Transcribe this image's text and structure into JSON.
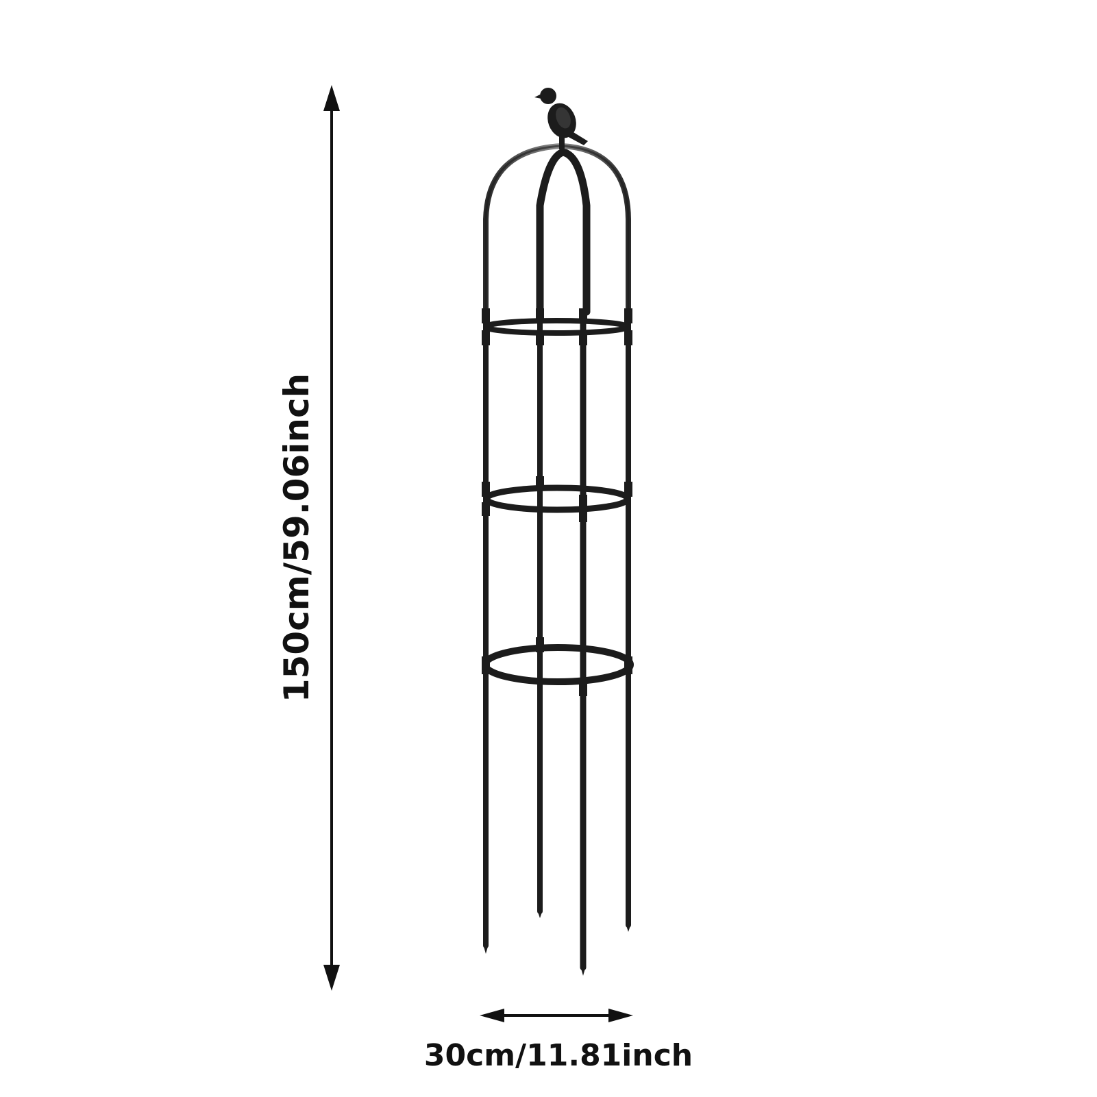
{
  "dimensions": {
    "height_label": "150cm/59.06inch",
    "width_label": "30cm/11.81inch"
  },
  "product": {
    "finial": "bird-finial",
    "rings": 3,
    "stakes": 4
  },
  "colors": {
    "background": "#ffffff",
    "frame": "#1c1c1c",
    "arrow": "#111111"
  }
}
